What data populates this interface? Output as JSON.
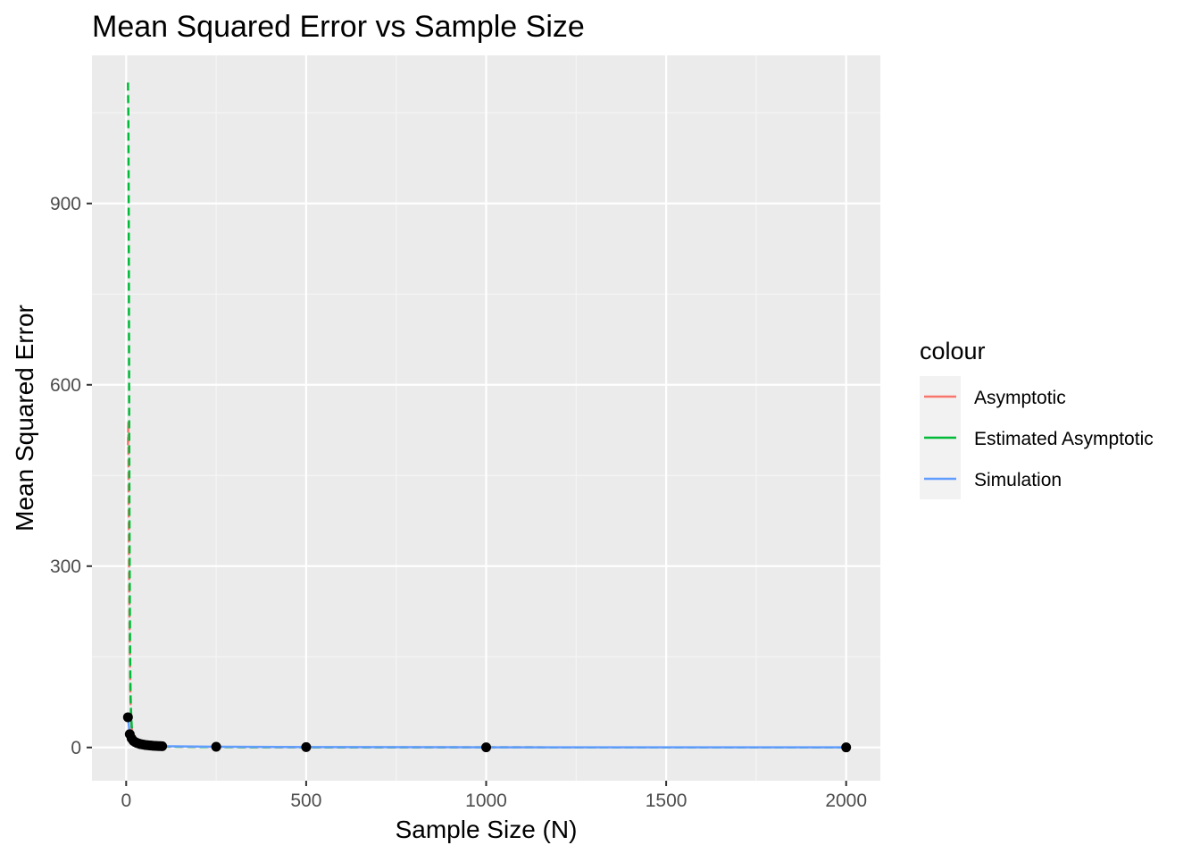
{
  "chart_data": {
    "type": "line",
    "title": "Mean Squared Error vs Sample Size",
    "xlabel": "Sample Size (N)",
    "ylabel": "Mean Squared Error",
    "xlim": [
      -95,
      2095
    ],
    "ylim": [
      -55,
      1145
    ],
    "x_ticks": [
      0,
      500,
      1000,
      1500,
      2000
    ],
    "x_tick_labels": [
      "0",
      "500",
      "1000",
      "1500",
      "2000"
    ],
    "x_minor_ticks": [
      250,
      750,
      1250,
      1750
    ],
    "y_ticks": [
      0,
      300,
      600,
      900
    ],
    "y_tick_labels": [
      "0",
      "300",
      "600",
      "900"
    ],
    "y_minor_ticks": [
      150,
      450,
      750,
      1050
    ],
    "grid": true,
    "legend": {
      "title": "colour",
      "position": "right",
      "entries": [
        "Asymptotic",
        "Estimated Asymptotic",
        "Simulation"
      ]
    },
    "series": [
      {
        "name": "Asymptotic",
        "color": "#F8766D",
        "dash": "dashed",
        "x": [
          5,
          6,
          7,
          8,
          9,
          10,
          11,
          12,
          14,
          16,
          18,
          20,
          25,
          30,
          40,
          50,
          60,
          70,
          80,
          90,
          100,
          250,
          500,
          1000,
          2000
        ],
        "y": [
          500,
          540,
          400,
          290,
          220,
          170,
          120,
          80,
          45,
          28,
          18,
          12,
          8,
          6,
          4,
          3,
          2.5,
          2,
          1.8,
          1.6,
          1.5,
          0.6,
          0.3,
          0.15,
          0.08
        ]
      },
      {
        "name": "Estimated Asymptotic",
        "color": "#00BA38",
        "dash": "dashed",
        "x": [
          5,
          6,
          7,
          8,
          9,
          10,
          11,
          12,
          14,
          16,
          18,
          20,
          25,
          30,
          40,
          50,
          60,
          70,
          80,
          90,
          100,
          250,
          500,
          1000,
          2000
        ],
        "y": [
          1100,
          1050,
          900,
          650,
          400,
          250,
          150,
          90,
          50,
          30,
          20,
          14,
          9,
          6.5,
          4.5,
          3.5,
          2.8,
          2.3,
          2,
          1.7,
          1.5,
          0.6,
          0.3,
          0.15,
          0.08
        ]
      },
      {
        "name": "Simulation",
        "color": "#619CFF",
        "dash": "solid",
        "x": [
          5,
          10,
          15,
          20,
          25,
          30,
          35,
          40,
          45,
          50,
          55,
          60,
          65,
          70,
          75,
          80,
          85,
          90,
          95,
          100,
          250,
          500,
          1000,
          2000
        ],
        "y": [
          50,
          22,
          15,
          11,
          9,
          7.5,
          6.5,
          5.5,
          5,
          4.5,
          4,
          3.7,
          3.4,
          3.1,
          2.9,
          2.7,
          2.5,
          2.3,
          2.2,
          2.1,
          1.2,
          0.6,
          0.3,
          0.15
        ]
      }
    ],
    "points": {
      "color": "#000000",
      "x": [
        5,
        10,
        15,
        20,
        25,
        30,
        35,
        40,
        45,
        50,
        55,
        60,
        65,
        70,
        75,
        80,
        85,
        90,
        95,
        100,
        250,
        500,
        1000,
        2000
      ],
      "y": [
        50,
        22,
        15,
        11,
        9,
        7.5,
        6.5,
        5.5,
        5,
        4.5,
        4,
        3.7,
        3.4,
        3.1,
        2.9,
        2.7,
        2.5,
        2.3,
        2.2,
        2.1,
        1.2,
        0.6,
        0.3,
        0.15
      ]
    }
  }
}
